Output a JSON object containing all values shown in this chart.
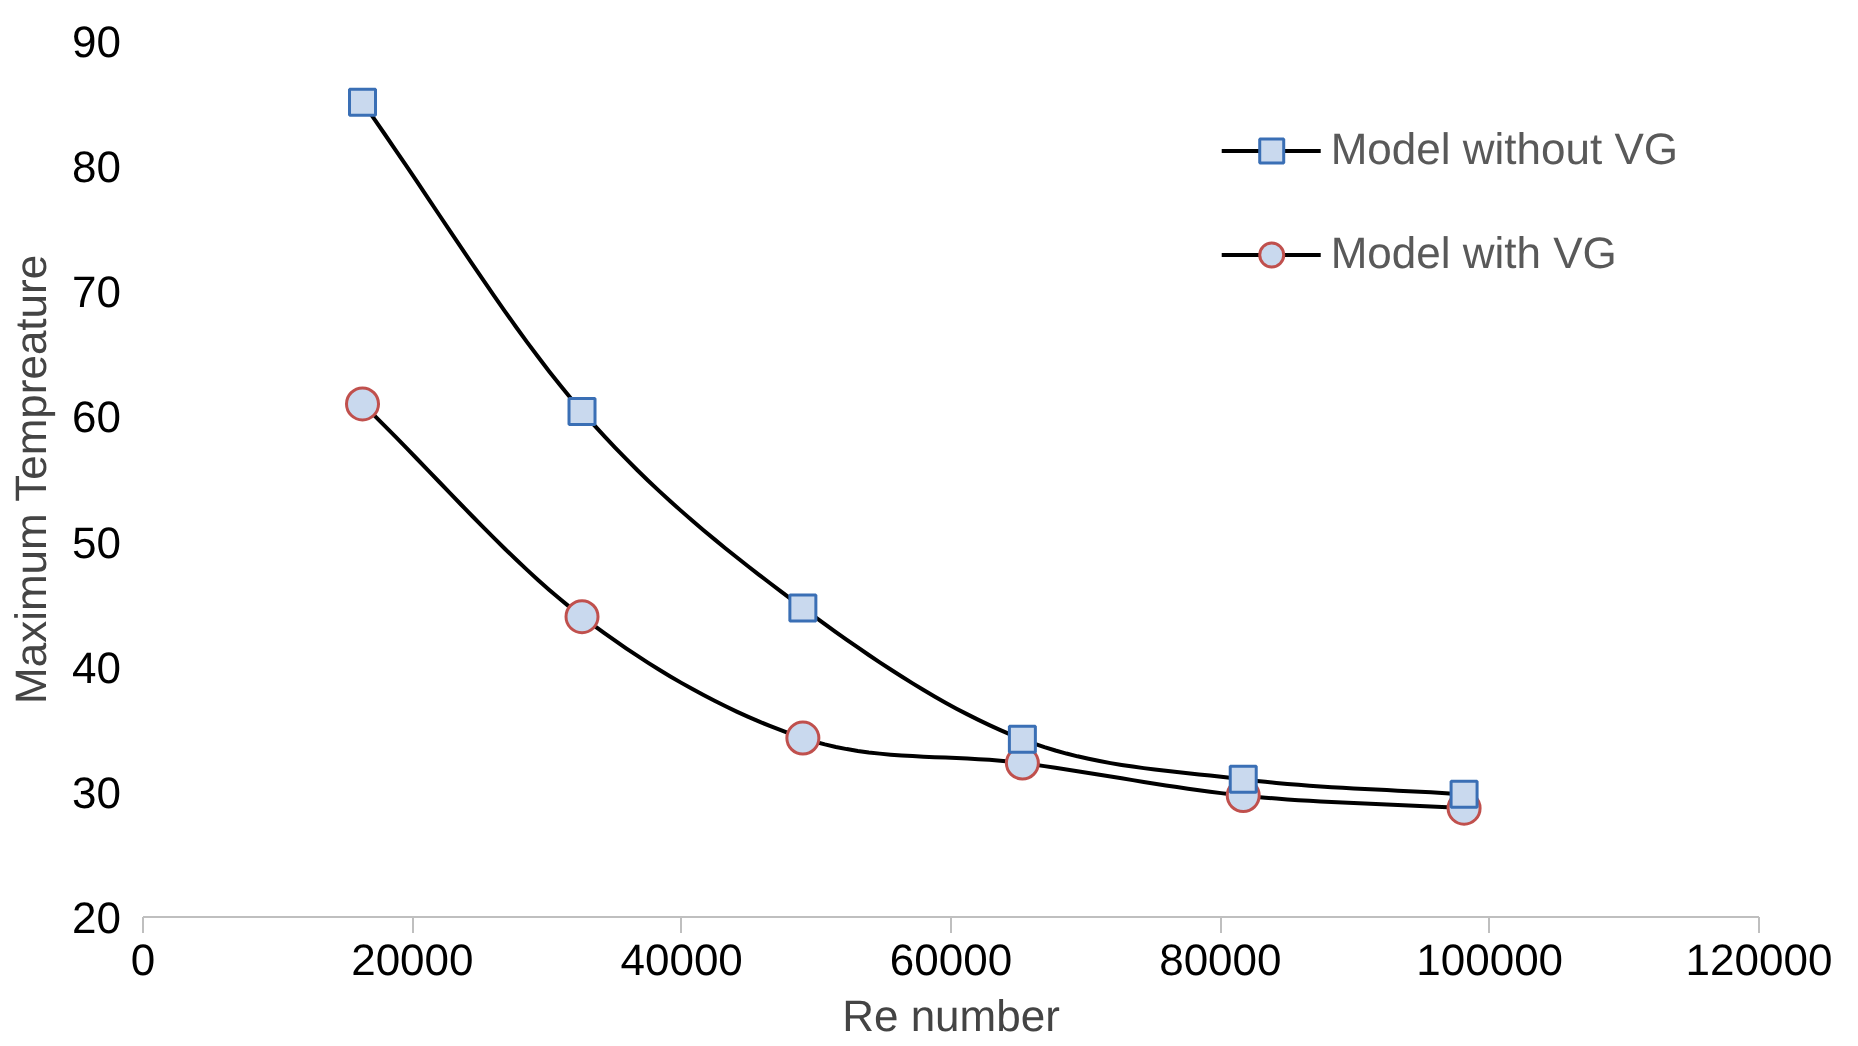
{
  "chart_data": {
    "type": "line",
    "xlabel": "Re number",
    "ylabel": "Maximum Tempreature",
    "x": [
      16300,
      32600,
      49000,
      65300,
      81700,
      98100
    ],
    "series": [
      {
        "name": "Model without VG",
        "color": "#000000",
        "marker": "square",
        "values": [
          85.1,
          60.4,
          44.7,
          34.2,
          31.0,
          29.8
        ]
      },
      {
        "name": "Model with VG",
        "color": "#000000",
        "marker": "circle",
        "values": [
          61.0,
          44.0,
          34.3,
          32.3,
          29.7,
          28.7
        ]
      }
    ],
    "xlim": [
      0,
      120000
    ],
    "xticks": [
      0,
      20000,
      40000,
      60000,
      80000,
      100000,
      120000
    ],
    "ylim": [
      20,
      90
    ],
    "yticks": [
      20,
      30,
      40,
      50,
      60,
      70,
      80,
      90
    ],
    "grid": false,
    "legend": "top right",
    "line_style": "solid"
  }
}
